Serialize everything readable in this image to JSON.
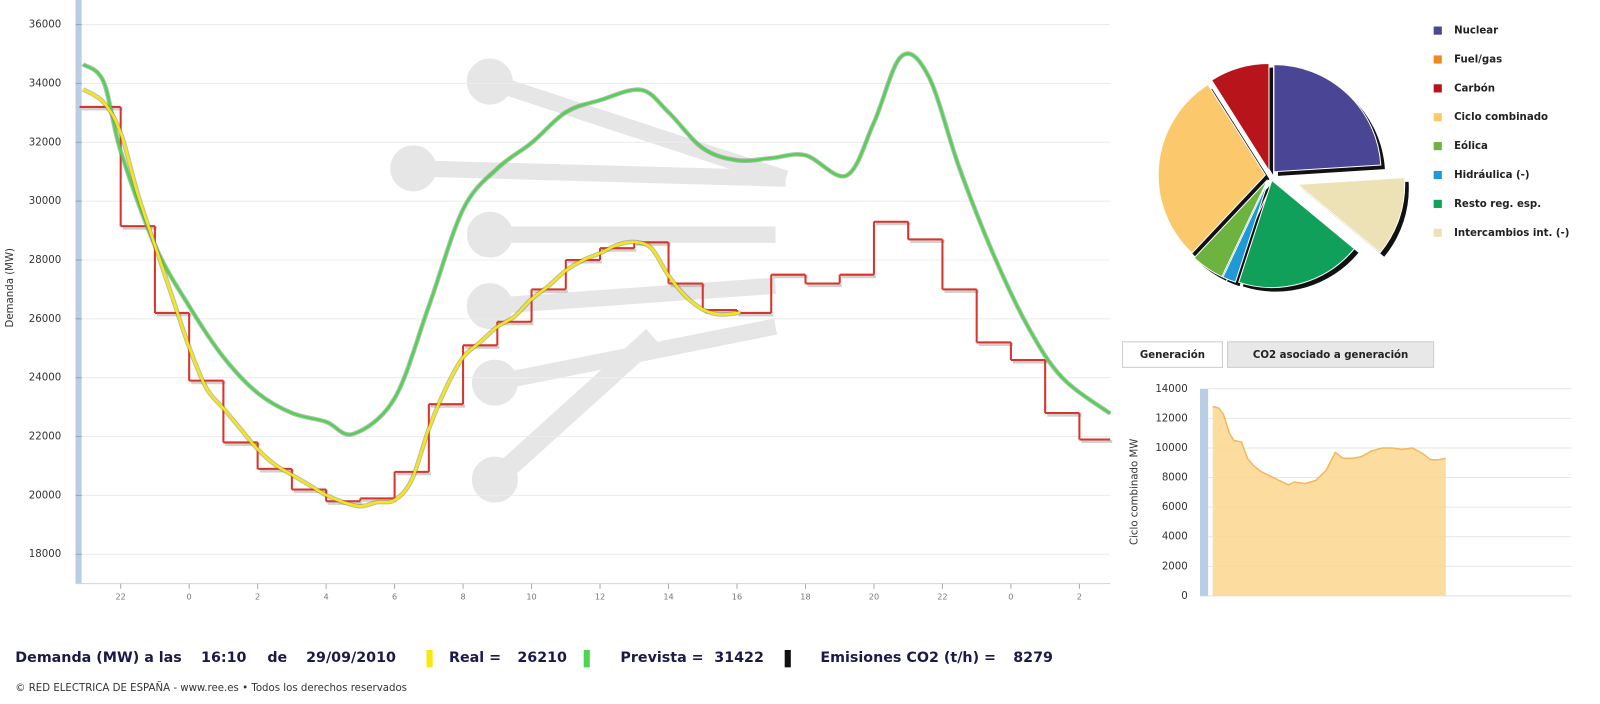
{
  "chart_data": [
    {
      "type": "line",
      "y_label": "Demanda (MW)",
      "ylim": [
        17000,
        36800
      ],
      "yticks": [
        18000,
        20000,
        22000,
        24000,
        26000,
        28000,
        30000,
        32000,
        34000,
        36000
      ],
      "xlim": [
        -3.2,
        26.9
      ],
      "xticks": [
        {
          "value": -2,
          "label": "22"
        },
        0,
        2,
        4,
        6,
        8,
        10,
        12,
        14,
        16,
        18,
        20,
        22,
        {
          "value": 24,
          "label": "0"
        },
        {
          "value": 26,
          "label": "2"
        }
      ],
      "grid": true,
      "series": [
        {
          "color": "#d9342b",
          "step": "post",
          "x": [
            -3.2,
            -2,
            -1,
            0,
            1,
            2,
            3,
            4,
            5,
            6,
            7,
            8,
            9,
            10,
            11,
            12,
            13,
            14,
            15,
            16,
            17,
            18,
            19,
            20,
            21,
            22,
            23,
            24,
            25,
            26
          ],
          "values": [
            33200,
            29150,
            26200,
            23900,
            21800,
            20900,
            20200,
            19800,
            19900,
            20800,
            23100,
            25100,
            25900,
            27000,
            28000,
            28400,
            28600,
            27200,
            26300,
            26200,
            27500,
            27200,
            27500,
            29300,
            28700,
            27000,
            25200,
            24600,
            22800,
            21900
          ]
        },
        {
          "color": "#4fd44f",
          "x": [
            -3.1,
            -2.5,
            -2,
            -1,
            0,
            1,
            2,
            3,
            4,
            4.8,
            6,
            7,
            8,
            9,
            10,
            11,
            12,
            13.2,
            14,
            15,
            16,
            17,
            18,
            19.2,
            20,
            20.8,
            21.6,
            22.5,
            23.5,
            24.5,
            25.5,
            26.9
          ],
          "values": [
            34650,
            34060,
            31700,
            28500,
            26430,
            24700,
            23480,
            22800,
            22500,
            22090,
            23300,
            26430,
            29720,
            31110,
            31980,
            33020,
            33430,
            33780,
            33020,
            31800,
            31390,
            31460,
            31560,
            30870,
            32670,
            34920,
            34230,
            31110,
            28160,
            25730,
            24000,
            22780
          ]
        },
        {
          "color": "#f7e70c",
          "x": [
            -3.1,
            -2.5,
            -2,
            -1.5,
            -1,
            -0.5,
            0,
            0.5,
            1,
            1.5,
            2,
            2.5,
            3,
            3.5,
            4,
            4.5,
            5,
            5.5,
            6,
            6.5,
            7,
            7.5,
            8,
            8.5,
            9,
            9.5,
            10,
            10.5,
            11,
            11.5,
            12,
            12.5,
            13,
            13.5,
            14,
            14.5,
            15,
            15.5,
            16.1
          ],
          "values": [
            33800,
            33360,
            32320,
            30240,
            28500,
            26770,
            25040,
            23650,
            22960,
            22260,
            21570,
            21050,
            20700,
            20360,
            20010,
            19770,
            19630,
            19770,
            19840,
            20530,
            22260,
            23650,
            24690,
            25210,
            25730,
            26080,
            26670,
            27120,
            27640,
            27990,
            28230,
            28510,
            28610,
            28400,
            27470,
            26770,
            26320,
            26150,
            26210
          ]
        }
      ]
    },
    {
      "type": "pie",
      "explode_index": 7,
      "categories": [
        "Nuclear",
        "Fuel/gas",
        "Carbón",
        "Ciclo combinado",
        "Eólica",
        "Hidráulica (-)",
        "Resto reg. esp.",
        "Intercambios int. (-)"
      ],
      "values": [
        24,
        0,
        9,
        29,
        5,
        2,
        19,
        12
      ],
      "colors": [
        "#4b4596",
        "#f08a1d",
        "#b8141c",
        "#fbc96b",
        "#6db33f",
        "#1f9ad6",
        "#11a05a",
        "#ece2b5"
      ]
    },
    {
      "type": "area",
      "y_label": "Ciclo combinado MW",
      "color": "#fbd68e",
      "line_color": "#f2b95a",
      "ylim": [
        0,
        14000
      ],
      "yticks": [
        0,
        2000,
        4000,
        6000,
        8000,
        10000,
        12000,
        14000
      ],
      "xlim": [
        0,
        24
      ],
      "grid": true,
      "x": [
        0.3,
        0.7,
        1.0,
        1.4,
        1.7,
        2.2,
        2.6,
        3.0,
        3.5,
        4.1,
        4.7,
        5.3,
        5.7,
        6.4,
        7.1,
        7.8,
        8.4,
        8.9,
        9.5,
        10.1,
        10.8,
        11.5,
        12.2,
        12.8,
        13.5,
        14.2,
        14.7,
        15.2,
        15.7
      ],
      "values": [
        12800,
        12700,
        12300,
        11000,
        10500,
        10400,
        9300,
        8800,
        8400,
        8100,
        7800,
        7500,
        7700,
        7600,
        7800,
        8500,
        9700,
        9300,
        9300,
        9400,
        9800,
        10000,
        10000,
        9900,
        10000,
        9600,
        9200,
        9200,
        9300
      ]
    }
  ],
  "tabs": [
    "Generación",
    "CO2 asociado a generación"
  ],
  "footer": {
    "label": "Demanda (MW) a las",
    "time": "16:10",
    "de": "de",
    "date": "29/09/2010",
    "real_label": "Real =",
    "real": 26210,
    "forecast_label": "Prevista =",
    "forecast": 31422,
    "co2_label": "Emisiones CO2 (t/h) =",
    "co2": 8279,
    "copyright": "© RED ELECTRICA DE ESPAÑA - www.ree.es • Todos los derechos reservados"
  }
}
